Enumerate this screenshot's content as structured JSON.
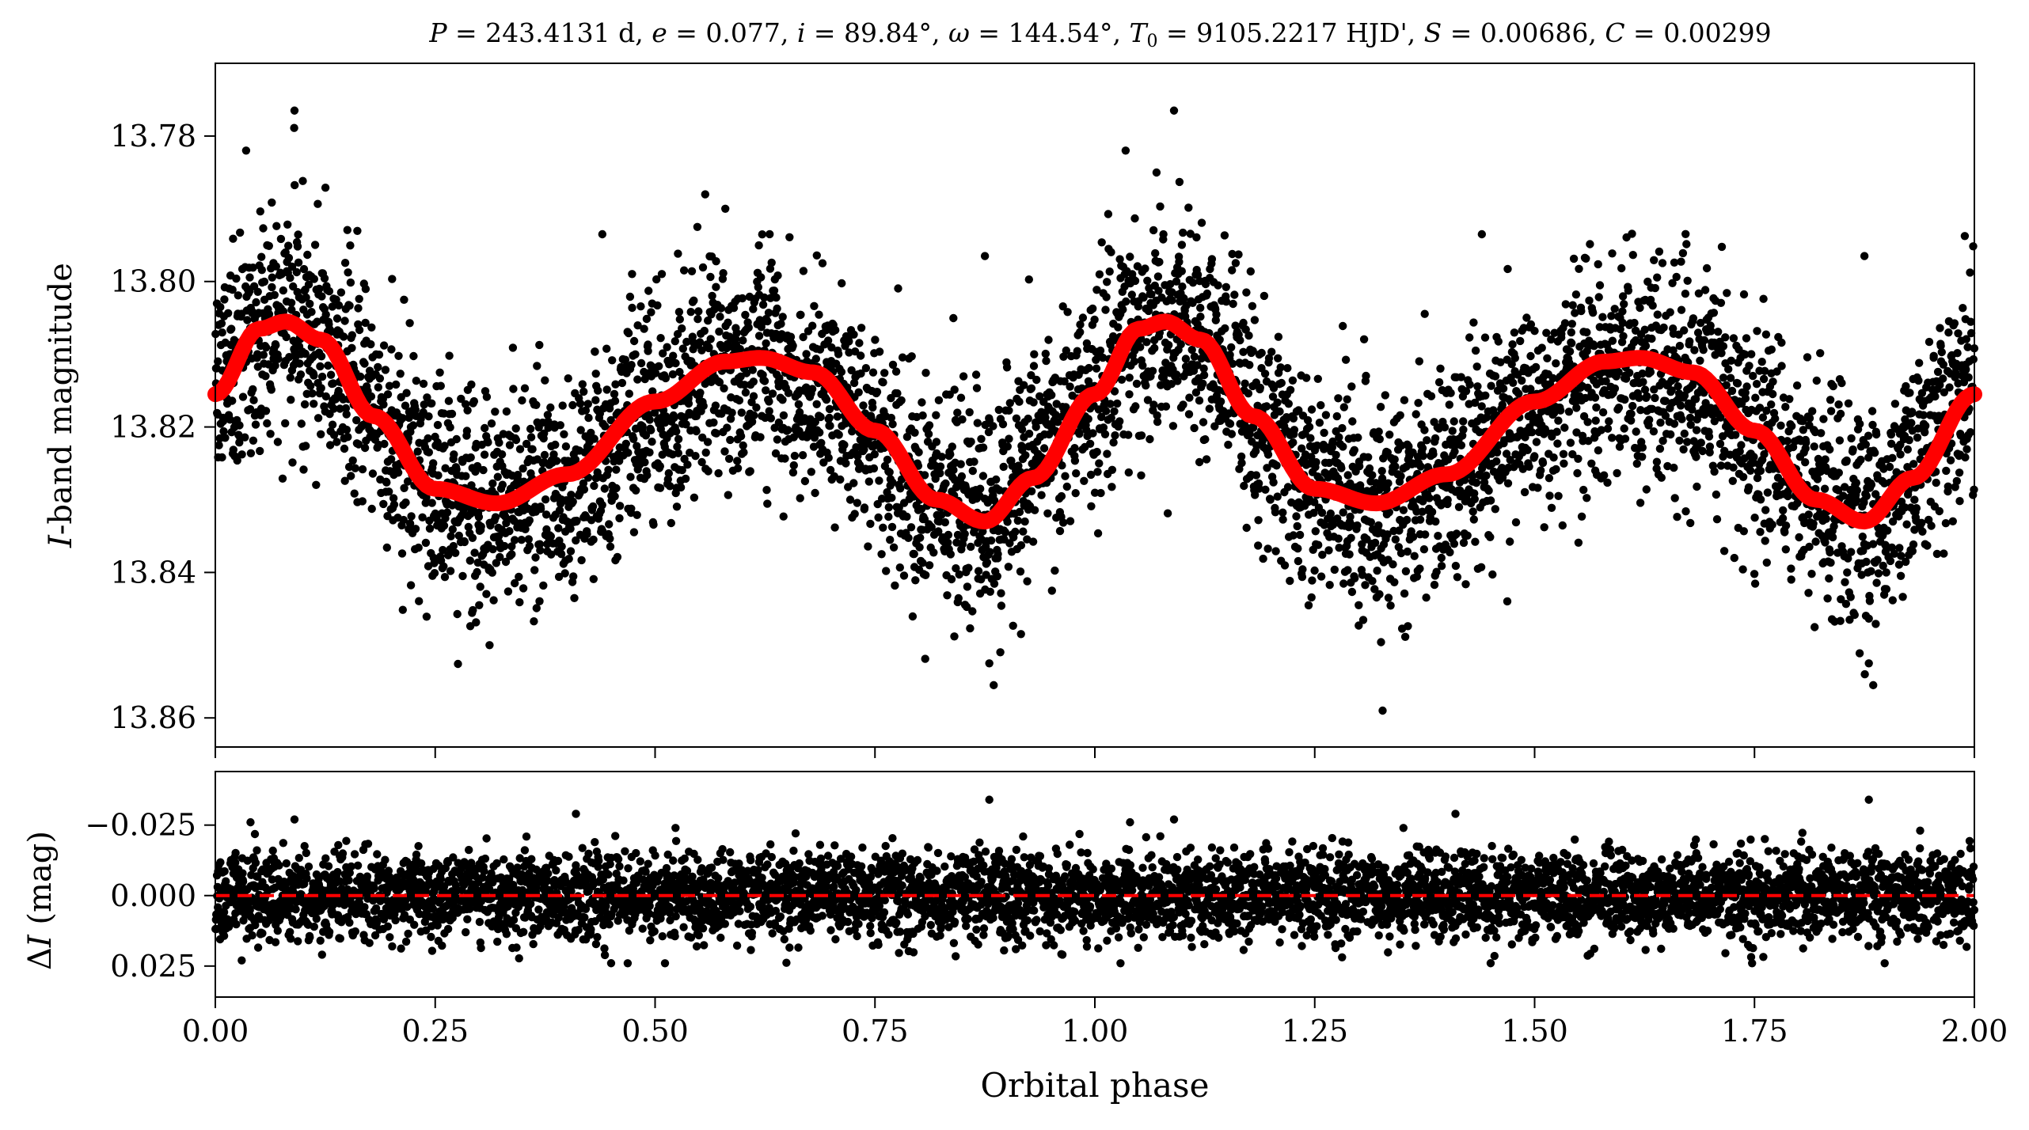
{
  "title": "P = 243.4131 d, e = 0.077, i = 89.84°, ω = 144.54°, T0 = 9105.2217 HJD', S = 0.00686, C = 0.00299",
  "title_parts": {
    "P_sym": "P",
    "P_val": " = 243.4131 d, ",
    "e_sym": "e",
    "e_val": " = 0.077, ",
    "i_sym": "i",
    "i_val": " = 89.84°, ",
    "w_sym": "ω",
    "w_val": " = 144.54°, ",
    "T_sym": "T",
    "T_sub": "0",
    "T_val": " = 9105.2217 HJD', ",
    "S_sym": "S",
    "S_val": " = 0.00686, ",
    "C_sym": "C",
    "C_val": " = 0.00299"
  },
  "xlabel": "Orbital phase",
  "top_ylabel_italic": "I",
  "top_ylabel_rest": "-band magnitude",
  "bottom_ylabel_prefix": "Δ",
  "bottom_ylabel_italic": "I",
  "bottom_ylabel_rest": " (mag)",
  "colors": {
    "data": "#000000",
    "model": "#ff0000",
    "zero_line": "#ff0000",
    "axes": "#000000"
  },
  "chart_data": [
    {
      "type": "scatter",
      "panel": "top",
      "ylabel": "I-band magnitude",
      "xlim": [
        0.0,
        2.0
      ],
      "ylim": [
        13.864,
        13.77
      ],
      "y_inverted": true,
      "x_ticks": [
        0.0,
        0.25,
        0.5,
        0.75,
        1.0,
        1.25,
        1.5,
        1.75,
        2.0
      ],
      "y_ticks": [
        13.78,
        13.8,
        13.82,
        13.84,
        13.86
      ],
      "y_tick_labels": [
        "13.78",
        "13.80",
        "13.82",
        "13.84",
        "13.86"
      ],
      "series": [
        {
          "kind": "points",
          "style": "black dots",
          "x": [
            0.0,
            0.05,
            0.09,
            0.15,
            0.2,
            0.25,
            0.32,
            0.4,
            0.5,
            0.58,
            0.62,
            0.7,
            0.75,
            0.82,
            0.88,
            0.95,
            1.0,
            1.05,
            1.09,
            1.15,
            1.2,
            1.25,
            1.32,
            1.4,
            1.5,
            1.58,
            1.62,
            1.7,
            1.75,
            1.82,
            1.88,
            1.95,
            2.0
          ],
          "y": [
            13.815,
            13.807,
            13.805,
            13.811,
            13.821,
            13.828,
            13.831,
            13.827,
            13.817,
            13.812,
            13.811,
            13.815,
            13.821,
            13.829,
            13.833,
            13.822,
            13.815,
            13.807,
            13.805,
            13.811,
            13.821,
            13.828,
            13.831,
            13.827,
            13.817,
            13.812,
            13.811,
            13.815,
            13.821,
            13.829,
            13.833,
            13.822,
            13.815
          ],
          "scatter_sd": 0.0075
        },
        {
          "kind": "line",
          "style": "red thick model curve",
          "x": [
            0.0,
            0.05,
            0.08,
            0.12,
            0.18,
            0.25,
            0.32,
            0.4,
            0.5,
            0.58,
            0.62,
            0.68,
            0.75,
            0.82,
            0.875,
            0.93,
            1.0,
            1.05,
            1.08,
            1.12,
            1.18,
            1.25,
            1.32,
            1.4,
            1.5,
            1.58,
            1.62,
            1.68,
            1.75,
            1.82,
            1.875,
            1.93,
            2.0
          ],
          "y": [
            13.8155,
            13.8065,
            13.8055,
            13.808,
            13.8185,
            13.8285,
            13.8305,
            13.8265,
            13.8165,
            13.811,
            13.8105,
            13.8125,
            13.8205,
            13.83,
            13.833,
            13.827,
            13.8155,
            13.8065,
            13.8055,
            13.808,
            13.8185,
            13.8285,
            13.8305,
            13.8265,
            13.8165,
            13.811,
            13.8105,
            13.8125,
            13.8205,
            13.83,
            13.833,
            13.827,
            13.8155
          ]
        }
      ],
      "outliers": [
        {
          "x": 0.035,
          "y": 13.782
        },
        {
          "x": 0.09,
          "y": 13.7765
        },
        {
          "x": 1.035,
          "y": 13.782
        },
        {
          "x": 1.09,
          "y": 13.7765
        },
        {
          "x": 0.885,
          "y": 13.8555
        },
        {
          "x": 1.885,
          "y": 13.8555
        },
        {
          "x": 0.88,
          "y": 13.8525
        },
        {
          "x": 1.88,
          "y": 13.8525
        },
        {
          "x": 0.3,
          "y": 13.8445
        },
        {
          "x": 1.3,
          "y": 13.8445
        },
        {
          "x": 0.44,
          "y": 13.7935
        },
        {
          "x": 1.44,
          "y": 13.7935
        },
        {
          "x": 0.875,
          "y": 13.7965
        },
        {
          "x": 1.875,
          "y": 13.7965
        }
      ]
    },
    {
      "type": "scatter",
      "panel": "bottom",
      "ylabel": "ΔI (mag)",
      "xlabel": "Orbital phase",
      "xlim": [
        0.0,
        2.0
      ],
      "ylim": [
        0.036,
        -0.044
      ],
      "y_inverted": true,
      "x_ticks": [
        0.0,
        0.25,
        0.5,
        0.75,
        1.0,
        1.25,
        1.5,
        1.75,
        2.0
      ],
      "x_tick_labels": [
        "0.00",
        "0.25",
        "0.50",
        "0.75",
        "1.00",
        "1.25",
        "1.50",
        "1.75",
        "2.00"
      ],
      "y_ticks": [
        -0.025,
        0.0,
        0.025
      ],
      "y_tick_labels": [
        "−0.025",
        "0.000",
        "0.025"
      ],
      "series": [
        {
          "kind": "points",
          "style": "black dots",
          "center": 0.0,
          "scatter_sd": 0.0075
        },
        {
          "kind": "hline",
          "style": "red dashed",
          "y": 0.0
        }
      ],
      "outliers": [
        {
          "x": 0.04,
          "y": -0.026
        },
        {
          "x": 0.09,
          "y": -0.027
        },
        {
          "x": 0.41,
          "y": -0.029
        },
        {
          "x": 0.88,
          "y": -0.034
        },
        {
          "x": 1.04,
          "y": -0.026
        },
        {
          "x": 1.09,
          "y": -0.027
        },
        {
          "x": 1.41,
          "y": -0.029
        },
        {
          "x": 1.88,
          "y": -0.034
        },
        {
          "x": 0.03,
          "y": 0.023
        },
        {
          "x": 0.45,
          "y": 0.024
        },
        {
          "x": 1.45,
          "y": 0.024
        }
      ]
    }
  ]
}
